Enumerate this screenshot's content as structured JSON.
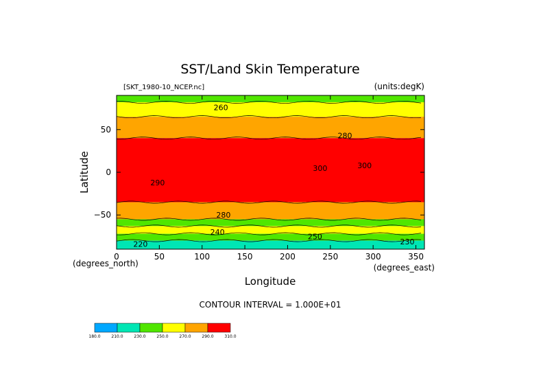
{
  "chart_data": {
    "type": "heatmap",
    "title": "SST/Land Skin Temperature",
    "subtitle": "[SKT_1980-10_NCEP.nc]",
    "units_label": "(units:degK)",
    "xlabel": "Longitude",
    "ylabel": "Latitude",
    "x_unit_label": "(degrees_east)",
    "y_unit_label": "(degrees_north)",
    "xlim": [
      0,
      360
    ],
    "ylim": [
      -90,
      90
    ],
    "x_ticks": [
      0,
      50,
      100,
      150,
      200,
      250,
      300,
      350
    ],
    "x_tick_labels": [
      "0",
      "50",
      "100",
      "150",
      "200",
      "250",
      "300",
      "350"
    ],
    "y_ticks": [
      50,
      0,
      -50
    ],
    "y_tick_labels": [
      "50",
      "0",
      "−50"
    ],
    "contour_interval_text": "CONTOUR INTERVAL = 1.000E+01",
    "contour_labels": [
      {
        "text": "260",
        "lon": 122,
        "lat": 76
      },
      {
        "text": "280",
        "lon": 267,
        "lat": 43
      },
      {
        "text": "300",
        "lon": 238,
        "lat": 5
      },
      {
        "text": "300",
        "lon": 290,
        "lat": 8
      },
      {
        "text": "290",
        "lon": 48,
        "lat": -12
      },
      {
        "text": "280",
        "lon": 125,
        "lat": -50
      },
      {
        "text": "240",
        "lon": 118,
        "lat": -70
      },
      {
        "text": "250",
        "lon": 232,
        "lat": -75
      },
      {
        "text": "220",
        "lon": 28,
        "lat": -84
      },
      {
        "text": "230",
        "lon": 340,
        "lat": -81
      }
    ],
    "colorbar": {
      "colors": [
        "#00a8ff",
        "#00e6b4",
        "#50e600",
        "#ffff00",
        "#ffa500",
        "#ff0000"
      ],
      "labels": [
        "180.0",
        "210.0",
        "230.0",
        "250.0",
        "270.0",
        "290.0",
        "310.0"
      ]
    },
    "bands": [
      {
        "lat_from": 90,
        "lat_to": 82,
        "level": 270
      },
      {
        "lat_from": 82,
        "lat_to": 65,
        "level": 260
      },
      {
        "lat_from": 65,
        "lat_to": 40,
        "level": 280
      },
      {
        "lat_from": 40,
        "lat_to": -35,
        "level": 300
      },
      {
        "lat_from": -35,
        "lat_to": -55,
        "level": 280
      },
      {
        "lat_from": -55,
        "lat_to": -63,
        "level": 270
      },
      {
        "lat_from": -63,
        "lat_to": -72,
        "level": 260
      },
      {
        "lat_from": -72,
        "lat_to": -80,
        "level": 240
      },
      {
        "lat_from": -80,
        "lat_to": -90,
        "level": 220
      }
    ],
    "level_colors": {
      "220": "#00e6b4",
      "240": "#50e600",
      "260": "#ffff00",
      "270": "#50e600",
      "280": "#ffa500",
      "300": "#ff0000"
    }
  }
}
